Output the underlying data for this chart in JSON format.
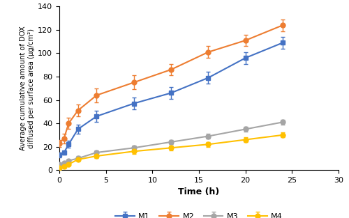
{
  "time": [
    0,
    0.5,
    1,
    2,
    4,
    8,
    12,
    16,
    20,
    24
  ],
  "M1": [
    13,
    15,
    22,
    35,
    46,
    57,
    66,
    79,
    96,
    109
  ],
  "M1_err": [
    2,
    2,
    3,
    4,
    5,
    5,
    5,
    5,
    5,
    5
  ],
  "M2": [
    23,
    27,
    40,
    51,
    64,
    75,
    86,
    101,
    111,
    124
  ],
  "M2_err": [
    3,
    4,
    5,
    5,
    6,
    6,
    5,
    5,
    5,
    5
  ],
  "M3": [
    5,
    6,
    8,
    10,
    15,
    19,
    24,
    29,
    35,
    41
  ],
  "M3_err": [
    1,
    1,
    1,
    2,
    2,
    2,
    2,
    2,
    2,
    2
  ],
  "M4": [
    2,
    3,
    5,
    9,
    12,
    16,
    19,
    22,
    26,
    30
  ],
  "M4_err": [
    1,
    1,
    1,
    1,
    2,
    2,
    2,
    2,
    2,
    2
  ],
  "color_M1": "#4472C4",
  "color_M2": "#ED7D31",
  "color_M3": "#A5A5A5",
  "color_M4": "#FFC000",
  "xlabel": "Time (h)",
  "ylabel": "Average cumulative amount of DOX\ndiffused per surface area (μg/cm²)",
  "xlim": [
    0,
    30
  ],
  "ylim": [
    0,
    140
  ],
  "yticks": [
    0,
    20,
    40,
    60,
    80,
    100,
    120,
    140
  ],
  "xticks": [
    0,
    5,
    10,
    15,
    20,
    25,
    30
  ],
  "marker_M1": "s",
  "marker_M2": "o",
  "marker_M3": "o",
  "marker_M4": "o"
}
